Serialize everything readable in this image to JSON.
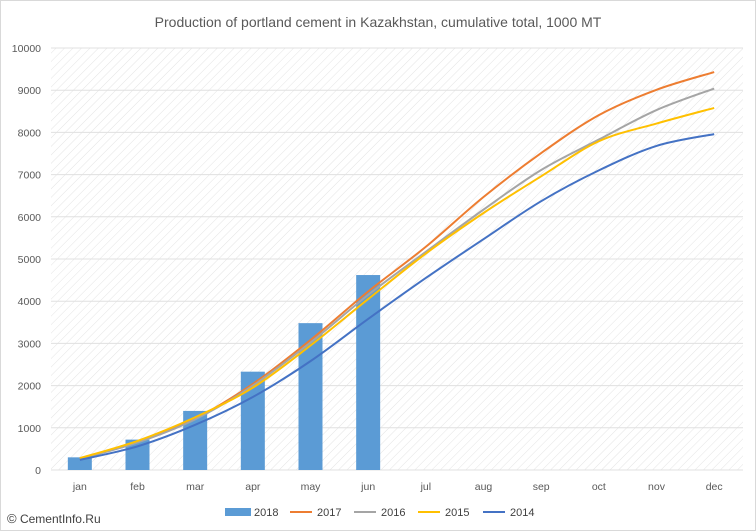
{
  "chart_data": {
    "type": "bar+line",
    "title": "Production of portland cement in Kazakhstan, cumulative total, 1000 MT",
    "xlabel": "",
    "ylabel": "",
    "categories": [
      "jan",
      "feb",
      "mar",
      "apr",
      "may",
      "jun",
      "jul",
      "aug",
      "sep",
      "oct",
      "nov",
      "dec"
    ],
    "ylim": [
      0,
      10000
    ],
    "yticks": [
      0,
      1000,
      2000,
      3000,
      4000,
      5000,
      6000,
      7000,
      8000,
      9000,
      10000
    ],
    "grid": "diagonal-hatch background",
    "legend_position": "bottom",
    "series": [
      {
        "name": "2018",
        "kind": "bar",
        "color": "#5b9bd5",
        "values": [
          300,
          720,
          1400,
          2330,
          3480,
          4620,
          null,
          null,
          null,
          null,
          null,
          null
        ]
      },
      {
        "name": "2017",
        "kind": "line",
        "color": "#ed7d31",
        "values": [
          270,
          660,
          1220,
          2040,
          3080,
          4230,
          5290,
          6470,
          7510,
          8410,
          9010,
          9430
        ]
      },
      {
        "name": "2016",
        "kind": "line",
        "color": "#a5a5a5",
        "values": [
          260,
          650,
          1200,
          2000,
          3020,
          4150,
          5170,
          6170,
          7110,
          7830,
          8530,
          9040
        ]
      },
      {
        "name": "2015",
        "kind": "line",
        "color": "#ffc000",
        "values": [
          280,
          690,
          1250,
          1950,
          2950,
          4050,
          5130,
          6090,
          6960,
          7790,
          8210,
          8580
        ]
      },
      {
        "name": "2014",
        "kind": "line",
        "color": "#4472c4",
        "values": [
          240,
          560,
          1070,
          1730,
          2580,
          3580,
          4550,
          5470,
          6370,
          7100,
          7680,
          7960
        ]
      }
    ]
  },
  "watermark": {
    "symbol": "©",
    "text": "CementInfo.Ru"
  }
}
